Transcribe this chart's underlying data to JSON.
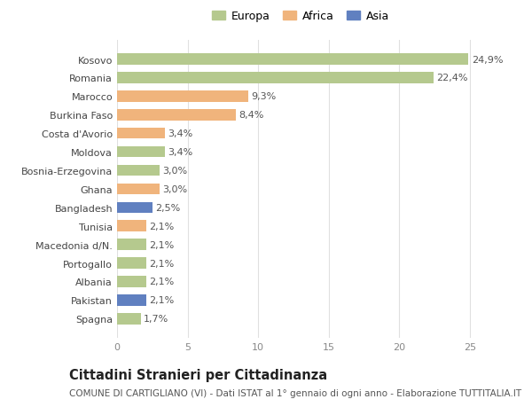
{
  "categories": [
    "Kosovo",
    "Romania",
    "Marocco",
    "Burkina Faso",
    "Costa d'Avorio",
    "Moldova",
    "Bosnia-Erzegovina",
    "Ghana",
    "Bangladesh",
    "Tunisia",
    "Macedonia d/N.",
    "Portogallo",
    "Albania",
    "Pakistan",
    "Spagna"
  ],
  "values": [
    24.9,
    22.4,
    9.3,
    8.4,
    3.4,
    3.4,
    3.0,
    3.0,
    2.5,
    2.1,
    2.1,
    2.1,
    2.1,
    2.1,
    1.7
  ],
  "labels": [
    "24,9%",
    "22,4%",
    "9,3%",
    "8,4%",
    "3,4%",
    "3,4%",
    "3,0%",
    "3,0%",
    "2,5%",
    "2,1%",
    "2,1%",
    "2,1%",
    "2,1%",
    "2,1%",
    "1,7%"
  ],
  "continents": [
    "Europa",
    "Europa",
    "Africa",
    "Africa",
    "Africa",
    "Europa",
    "Europa",
    "Africa",
    "Asia",
    "Africa",
    "Europa",
    "Europa",
    "Europa",
    "Asia",
    "Europa"
  ],
  "continent_colors": {
    "Europa": "#b5c98e",
    "Africa": "#f0b47c",
    "Asia": "#6080c0"
  },
  "legend_items": [
    "Europa",
    "Africa",
    "Asia"
  ],
  "legend_colors": [
    "#b5c98e",
    "#f0b47c",
    "#6080c0"
  ],
  "xlim": [
    0,
    26
  ],
  "xticks": [
    0,
    5,
    10,
    15,
    20,
    25
  ],
  "title": "Cittadini Stranieri per Cittadinanza",
  "subtitle": "COMUNE DI CARTIGLIANO (VI) - Dati ISTAT al 1° gennaio di ogni anno - Elaborazione TUTTITALIA.IT",
  "background_color": "#ffffff",
  "grid_color": "#e0e0e0",
  "label_fontsize": 8.0,
  "bar_label_fontsize": 8.0,
  "title_fontsize": 10.5,
  "subtitle_fontsize": 7.5
}
